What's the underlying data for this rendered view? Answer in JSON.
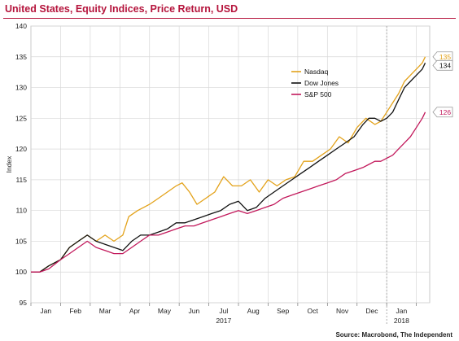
{
  "title": "United States, Equity Indices, Price Return, USD",
  "source": "Source: Macrobond, The Independent",
  "colors": {
    "title": "#b5143c",
    "nasdaq": "#e3a21a",
    "dow": "#111111",
    "sp500": "#c2185b",
    "grid": "#d8d8d8",
    "vline": "#999999"
  },
  "chart_data": {
    "type": "line",
    "title": "United States, Equity Indices, Price Return, USD",
    "xlabel": "",
    "ylabel": "Index",
    "ylim": [
      95,
      140
    ],
    "yticks": [
      "95",
      "100",
      "105",
      "110",
      "115",
      "120",
      "125",
      "130",
      "135",
      "140"
    ],
    "x_unit": "months since start of January 2017",
    "xlim": [
      0,
      13.45
    ],
    "month_labels": [
      "Jan",
      "Feb",
      "Mar",
      "Apr",
      "May",
      "Jun",
      "Jul",
      "Aug",
      "Sep",
      "Oct",
      "Nov",
      "Dec",
      "Jan"
    ],
    "year_labels": [
      {
        "label": "2017",
        "at_month": 6
      },
      {
        "label": "2018",
        "at_month": 12
      }
    ],
    "year_divider_at_month": 12,
    "grid": true,
    "legend": "top-center",
    "series": [
      {
        "name": "Nasdaq",
        "end_label": "135",
        "x": [
          0,
          0.3,
          0.6,
          1.0,
          1.3,
          1.6,
          1.9,
          2.2,
          2.5,
          2.8,
          3.1,
          3.3,
          3.6,
          4.0,
          4.3,
          4.6,
          4.9,
          5.1,
          5.35,
          5.6,
          5.9,
          6.2,
          6.5,
          6.8,
          7.1,
          7.4,
          7.7,
          8.0,
          8.3,
          8.6,
          8.9,
          9.2,
          9.5,
          9.8,
          10.1,
          10.4,
          10.7,
          11.0,
          11.3,
          11.6,
          11.8,
          12.0,
          12.2,
          12.4,
          12.6,
          12.8,
          13.0,
          13.2,
          13.3
        ],
        "y": [
          100,
          100,
          101,
          102,
          104,
          105,
          106,
          105,
          106,
          105,
          106,
          109,
          110,
          111,
          112,
          113,
          114,
          114.5,
          113,
          111,
          112,
          113,
          115.5,
          114,
          114,
          115,
          113,
          115,
          114,
          115,
          115.5,
          118,
          118,
          119,
          120,
          122,
          121,
          123.5,
          125,
          124,
          124.5,
          126,
          127.5,
          129,
          131,
          132,
          133,
          134,
          135
        ]
      },
      {
        "name": "Dow Jones",
        "end_label": "134",
        "x": [
          0,
          0.3,
          0.6,
          1.0,
          1.3,
          1.6,
          1.9,
          2.2,
          2.5,
          2.8,
          3.1,
          3.4,
          3.7,
          4.0,
          4.3,
          4.6,
          4.9,
          5.2,
          5.5,
          5.8,
          6.1,
          6.4,
          6.7,
          7.0,
          7.3,
          7.6,
          7.9,
          8.2,
          8.5,
          8.8,
          9.1,
          9.4,
          9.7,
          10.0,
          10.3,
          10.6,
          10.9,
          11.2,
          11.4,
          11.6,
          11.8,
          12.0,
          12.2,
          12.4,
          12.6,
          12.8,
          13.0,
          13.2,
          13.3
        ],
        "y": [
          100,
          100,
          101,
          102,
          104,
          105,
          106,
          105,
          104.5,
          104,
          103.5,
          105,
          106,
          106,
          106.5,
          107,
          108,
          108,
          108.5,
          109,
          109.5,
          110,
          111,
          111.5,
          110,
          110.5,
          112,
          113,
          114,
          115,
          116,
          117,
          118,
          119,
          120,
          121,
          122,
          124,
          125,
          125,
          124.5,
          125,
          126,
          128,
          130,
          131,
          132,
          133,
          134
        ]
      },
      {
        "name": "S&P 500",
        "end_label": "126",
        "x": [
          0,
          0.3,
          0.6,
          1.0,
          1.3,
          1.6,
          1.9,
          2.2,
          2.5,
          2.8,
          3.1,
          3.4,
          3.7,
          4.0,
          4.3,
          4.6,
          4.9,
          5.2,
          5.5,
          5.8,
          6.1,
          6.4,
          6.7,
          7.0,
          7.3,
          7.6,
          7.9,
          8.2,
          8.5,
          8.8,
          9.1,
          9.4,
          9.7,
          10.0,
          10.3,
          10.6,
          10.9,
          11.2,
          11.4,
          11.6,
          11.8,
          12.0,
          12.2,
          12.4,
          12.6,
          12.8,
          13.0,
          13.2,
          13.3
        ],
        "y": [
          100,
          100,
          100.5,
          102,
          103,
          104,
          105,
          104,
          103.5,
          103,
          103,
          104,
          105,
          106,
          106,
          106.5,
          107,
          107.5,
          107.5,
          108,
          108.5,
          109,
          109.5,
          110,
          109.5,
          110,
          110.5,
          111,
          112,
          112.5,
          113,
          113.5,
          114,
          114.5,
          115,
          116,
          116.5,
          117,
          117.5,
          118,
          118,
          118.5,
          119,
          120,
          121,
          122,
          123.5,
          125,
          126
        ]
      }
    ]
  }
}
